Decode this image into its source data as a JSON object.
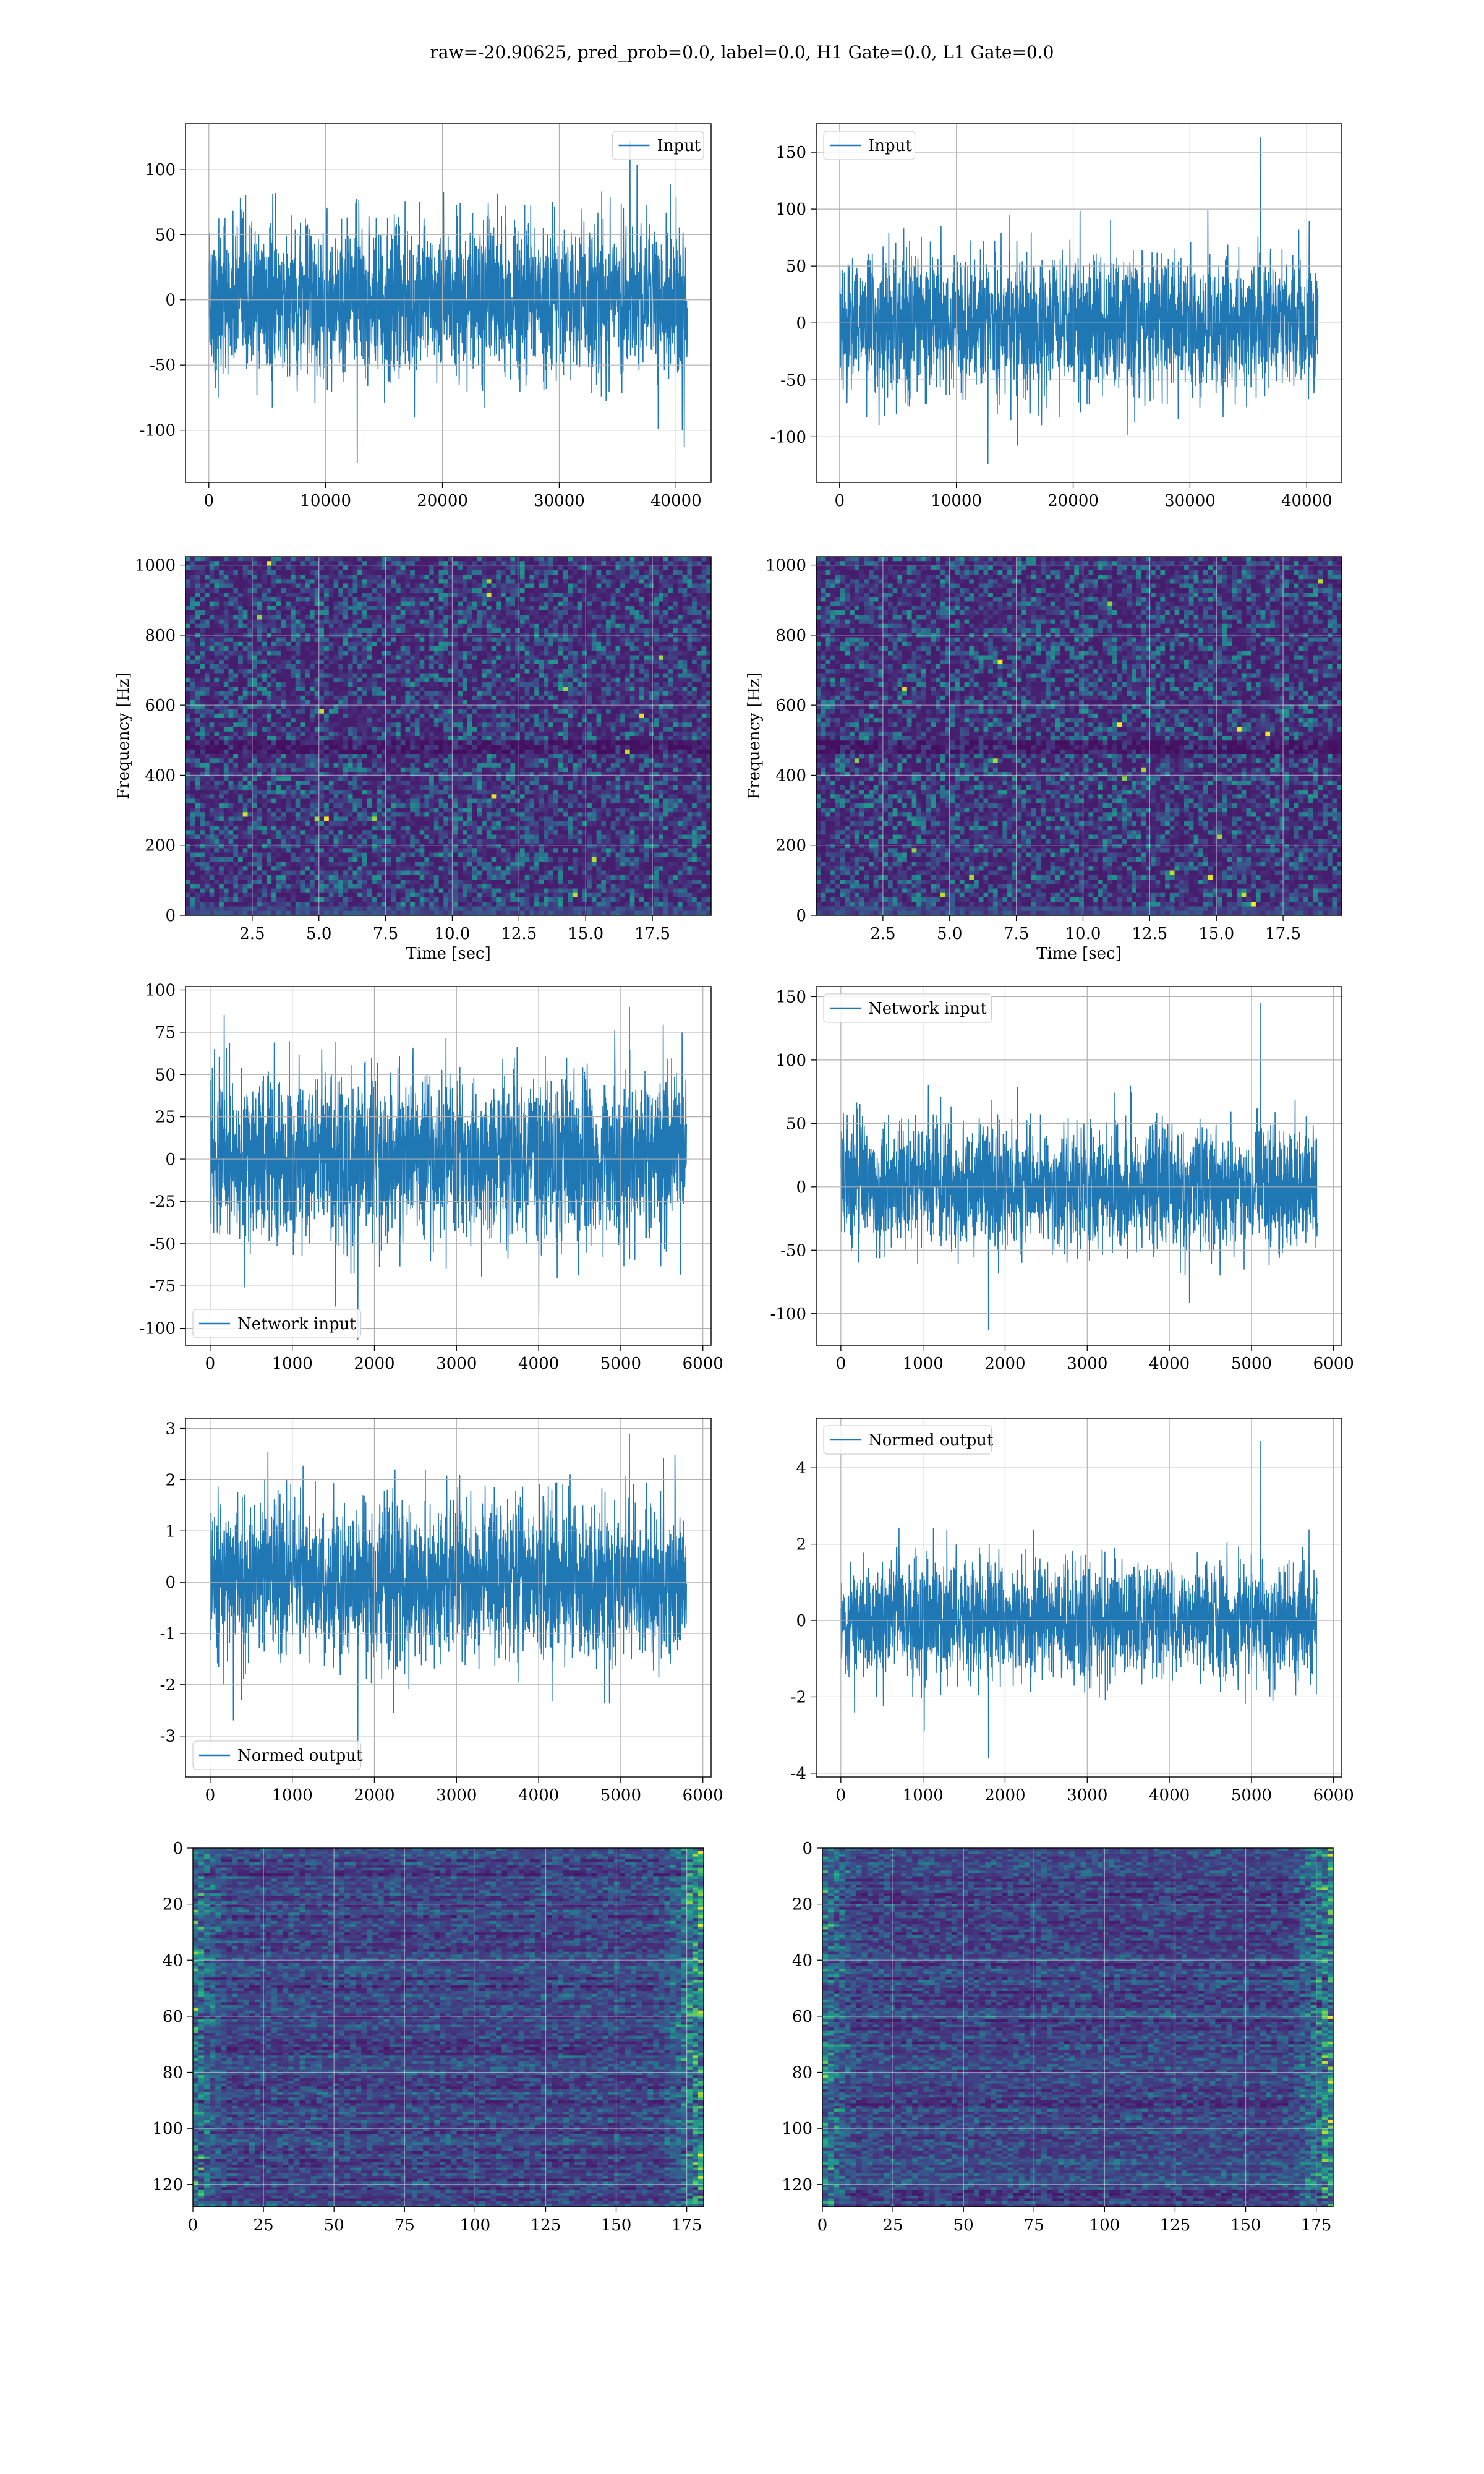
{
  "title": "raw=-20.90625, pred_prob=0.0, label=0.0, H1 Gate=0.0, L1 Gate=0.0",
  "colors": {
    "line": "#1f77b4",
    "grid": "#b0b0b0",
    "viridis": [
      "#440154",
      "#472c7a",
      "#3b518b",
      "#2c718e",
      "#21908d",
      "#27ad81",
      "#5cc863",
      "#aadc32",
      "#fde725"
    ]
  },
  "chart_data": [
    {
      "type": "line",
      "panel": "top-left",
      "legend": [
        "Input"
      ],
      "legend_position": "upper right",
      "x_range": [
        0,
        40960
      ],
      "xlim": [
        -2000,
        43000
      ],
      "ylim": [
        -140,
        135
      ],
      "xticks": [
        0,
        10000,
        20000,
        30000,
        40000
      ],
      "yticks": [
        -100,
        -50,
        0,
        50,
        100
      ],
      "amplitude": 30,
      "peak_max": 122,
      "peak_min": -125,
      "grid": true
    },
    {
      "type": "line",
      "panel": "top-right",
      "legend": [
        "Input"
      ],
      "legend_position": "upper left",
      "x_range": [
        0,
        40960
      ],
      "xlim": [
        -2000,
        43000
      ],
      "ylim": [
        -140,
        175
      ],
      "xticks": [
        0,
        10000,
        20000,
        30000,
        40000
      ],
      "yticks": [
        -100,
        -50,
        0,
        50,
        100,
        150
      ],
      "amplitude": 30,
      "peak_max": 163,
      "peak_min": -124,
      "grid": true
    },
    {
      "type": "heatmap",
      "panel": "spectrogram-left",
      "xlabel": "Time [sec]",
      "ylabel": "Frequency [Hz]",
      "xlim": [
        0,
        19.7
      ],
      "ylim": [
        0,
        1024
      ],
      "xticks": [
        "2.5",
        "5.0",
        "7.5",
        "10.0",
        "12.5",
        "15.0",
        "17.5"
      ],
      "yticks": [
        "0",
        "200",
        "400",
        "600",
        "800",
        "1000"
      ],
      "grid": true
    },
    {
      "type": "heatmap",
      "panel": "spectrogram-right",
      "xlabel": "Time [sec]",
      "ylabel": "Frequency [Hz]",
      "xlim": [
        0,
        19.7
      ],
      "ylim": [
        0,
        1024
      ],
      "xticks": [
        "2.5",
        "5.0",
        "7.5",
        "10.0",
        "12.5",
        "15.0",
        "17.5"
      ],
      "yticks": [
        "0",
        "200",
        "400",
        "600",
        "800",
        "1000"
      ],
      "grid": true
    },
    {
      "type": "line",
      "panel": "network-input-left",
      "legend": [
        "Network input"
      ],
      "legend_position": "lower left",
      "x_range": [
        0,
        5800
      ],
      "xlim": [
        -300,
        6100
      ],
      "ylim": [
        -110,
        102
      ],
      "xticks": [
        0,
        1000,
        2000,
        3000,
        4000,
        5000,
        6000
      ],
      "yticks": [
        -100,
        -75,
        -50,
        -25,
        0,
        25,
        50,
        75,
        100
      ],
      "amplitude": 24,
      "peak_max": 90,
      "peak_min": -107,
      "grid": true
    },
    {
      "type": "line",
      "panel": "network-input-right",
      "legend": [
        "Network input"
      ],
      "legend_position": "upper left",
      "x_range": [
        0,
        5800
      ],
      "xlim": [
        -300,
        6100
      ],
      "ylim": [
        -125,
        158
      ],
      "xticks": [
        0,
        1000,
        2000,
        3000,
        4000,
        5000,
        6000
      ],
      "yticks": [
        -100,
        -50,
        0,
        50,
        100,
        150
      ],
      "amplitude": 24,
      "peak_max": 145,
      "peak_min": -113,
      "grid": true
    },
    {
      "type": "line",
      "panel": "normed-output-left",
      "legend": [
        "Normed output"
      ],
      "legend_position": "lower left",
      "x_range": [
        0,
        5800
      ],
      "xlim": [
        -300,
        6100
      ],
      "ylim": [
        -3.8,
        3.2
      ],
      "xticks": [
        0,
        1000,
        2000,
        3000,
        4000,
        5000,
        6000
      ],
      "yticks": [
        -3,
        -2,
        -1,
        0,
        1,
        2,
        3
      ],
      "amplitude": 0.75,
      "peak_max": 2.9,
      "peak_min": -3.5,
      "grid": true
    },
    {
      "type": "line",
      "panel": "normed-output-right",
      "legend": [
        "Normed output"
      ],
      "legend_position": "upper left",
      "x_range": [
        0,
        5800
      ],
      "xlim": [
        -300,
        6100
      ],
      "ylim": [
        -4.1,
        5.3
      ],
      "xticks": [
        0,
        1000,
        2000,
        3000,
        4000,
        5000,
        6000
      ],
      "yticks": [
        -4,
        -2,
        0,
        2,
        4
      ],
      "amplitude": 0.75,
      "peak_max": 4.7,
      "peak_min": -3.6,
      "grid": true
    },
    {
      "type": "heatmap",
      "panel": "feature-map-left",
      "xlim": [
        0,
        181
      ],
      "ylim": [
        0,
        128
      ],
      "y_inverted": true,
      "xticks": [
        "0",
        "25",
        "50",
        "75",
        "100",
        "125",
        "150",
        "175"
      ],
      "yticks": [
        "0",
        "20",
        "40",
        "60",
        "80",
        "100",
        "120"
      ],
      "grid": true
    },
    {
      "type": "heatmap",
      "panel": "feature-map-right",
      "xlim": [
        0,
        181
      ],
      "ylim": [
        0,
        128
      ],
      "y_inverted": true,
      "xticks": [
        "0",
        "25",
        "50",
        "75",
        "100",
        "125",
        "150",
        "175"
      ],
      "yticks": [
        "0",
        "20",
        "40",
        "60",
        "80",
        "100",
        "120"
      ],
      "grid": true
    }
  ]
}
